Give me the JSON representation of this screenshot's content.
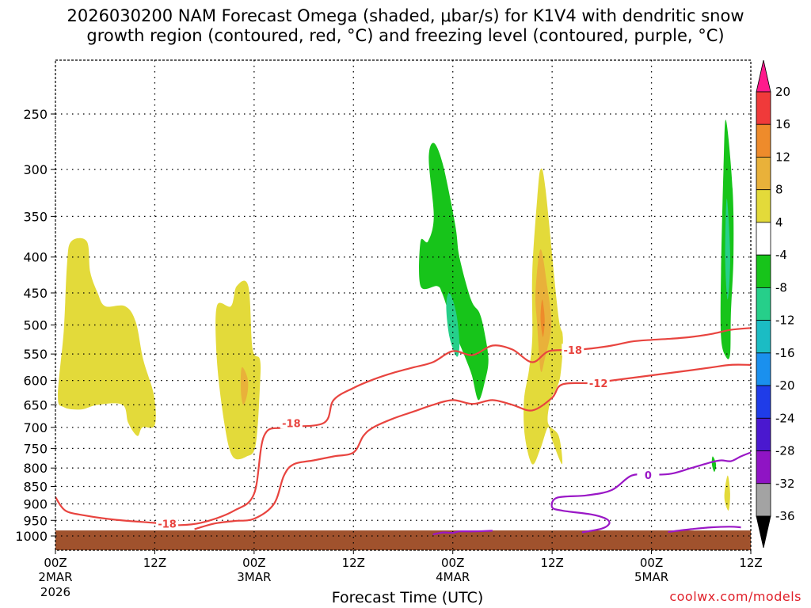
{
  "chart_data": {
    "type": "time-height cross section",
    "title_line1": "2026030200 NAM Forecast Omega (shaded, μbar/s) for K1V4 with dendritic snow",
    "title_line2": "growth region (contoured, red, °C) and freezing level (contoured, purple, °C)",
    "xlabel": "Forecast Time (UTC)",
    "x_range_hours": [
      0,
      84
    ],
    "x_ticks": [
      {
        "h": 0,
        "label": "00Z",
        "date": "2MAR",
        "year": "2026"
      },
      {
        "h": 12,
        "label": "12Z",
        "date": "",
        "year": ""
      },
      {
        "h": 24,
        "label": "00Z",
        "date": "3MAR",
        "year": ""
      },
      {
        "h": 36,
        "label": "12Z",
        "date": "",
        "year": ""
      },
      {
        "h": 48,
        "label": "00Z",
        "date": "4MAR",
        "year": ""
      },
      {
        "h": 60,
        "label": "12Z",
        "date": "",
        "year": ""
      },
      {
        "h": 72,
        "label": "00Z",
        "date": "5MAR",
        "year": ""
      },
      {
        "h": 84,
        "label": "12Z",
        "date": "",
        "year": ""
      }
    ],
    "y_ticks_hPa": [
      250,
      300,
      350,
      400,
      450,
      500,
      550,
      600,
      650,
      700,
      750,
      800,
      850,
      900,
      950,
      1000
    ],
    "y_range_hPa": [
      1030,
      200
    ],
    "ground_top_hPa": 982,
    "ground_color": "#a0522d",
    "colorbar": {
      "labels": [
        "20",
        "16",
        "12",
        "8",
        "4",
        "-4",
        "-8",
        "-12",
        "-16",
        "-20",
        "-24",
        "-28",
        "-32",
        "-36"
      ],
      "colors": [
        "#ff1a8c",
        "#f03a3a",
        "#ee8b2b",
        "#e9b13a",
        "#e3da3a",
        "#ffffff",
        "#17c41a",
        "#26cf8a",
        "#1bbcc4",
        "#1a90ee",
        "#1f3ce8",
        "#4a18cf",
        "#8f14c4",
        "#a3a3a3",
        "#000000"
      ]
    },
    "omega_regions": [
      {
        "name": "rise-2mar-early",
        "value_class": "4 to 8",
        "color": "#e3da3a",
        "points": [
          [
            0.3,
            630
          ],
          [
            1.0,
            510
          ],
          [
            1.4,
            410
          ],
          [
            1.9,
            380
          ],
          [
            3.8,
            380
          ],
          [
            4.2,
            420
          ],
          [
            5.1,
            450
          ],
          [
            6.0,
            470
          ],
          [
            8.4,
            470
          ],
          [
            9.7,
            495
          ],
          [
            10.6,
            560
          ],
          [
            11.9,
            630
          ],
          [
            12.0,
            695
          ],
          [
            10.5,
            700
          ],
          [
            9.9,
            720
          ],
          [
            8.8,
            690
          ],
          [
            8.1,
            650
          ],
          [
            5.1,
            650
          ],
          [
            3.1,
            660
          ],
          [
            1.0,
            655
          ]
        ]
      },
      {
        "name": "rise-2mar-late",
        "value_class": "4 to 8",
        "color": "#e3da3a",
        "points": [
          [
            19.5,
            470
          ],
          [
            21.2,
            470
          ],
          [
            21.9,
            440
          ],
          [
            23.3,
            440
          ],
          [
            23.8,
            540
          ],
          [
            24.7,
            560
          ],
          [
            24.7,
            610
          ],
          [
            24.2,
            740
          ],
          [
            23.1,
            770
          ],
          [
            21.4,
            770
          ],
          [
            20.4,
            690
          ],
          [
            19.5,
            560
          ]
        ]
      },
      {
        "name": "rise-2mar-late-core",
        "value_class": "8 to 12",
        "color": "#e9b13a",
        "points": [
          [
            22.5,
            575
          ],
          [
            23.2,
            595
          ],
          [
            23.2,
            625
          ],
          [
            22.7,
            650
          ],
          [
            22.4,
            620
          ]
        ]
      },
      {
        "name": "sink-4mar-upper",
        "value_class": "-4 to -8",
        "color": "#17c41a",
        "points": [
          [
            45.7,
            275
          ],
          [
            46.8,
            295
          ],
          [
            48.3,
            360
          ],
          [
            48.8,
            400
          ],
          [
            50.2,
            460
          ],
          [
            51.2,
            480
          ],
          [
            51.8,
            510
          ],
          [
            52.3,
            560
          ],
          [
            51.9,
            600
          ],
          [
            51.1,
            640
          ],
          [
            50.3,
            590
          ],
          [
            49.6,
            560
          ],
          [
            48.5,
            520
          ],
          [
            47.5,
            480
          ],
          [
            46.7,
            450
          ],
          [
            46.1,
            440
          ],
          [
            44.1,
            440
          ],
          [
            44.1,
            380
          ],
          [
            45.0,
            380
          ],
          [
            45.7,
            350
          ],
          [
            45.1,
            290
          ]
        ]
      },
      {
        "name": "sink-4mar-core",
        "value_class": "-8 to -12",
        "color": "#26cf8a",
        "points": [
          [
            47.6,
            450
          ],
          [
            48.4,
            480
          ],
          [
            48.8,
            530
          ],
          [
            48.5,
            555
          ],
          [
            47.6,
            520
          ],
          [
            47.2,
            470
          ]
        ]
      },
      {
        "name": "rise-4mar-pm",
        "value_class": "4 to 8",
        "color": "#e3da3a",
        "points": [
          [
            58.6,
            300
          ],
          [
            59.2,
            320
          ],
          [
            60.7,
            480
          ],
          [
            61.3,
            520
          ],
          [
            61.0,
            590
          ],
          [
            60.4,
            620
          ],
          [
            59.8,
            640
          ],
          [
            59.5,
            690
          ],
          [
            60.8,
            720
          ],
          [
            61.2,
            790
          ],
          [
            60.0,
            730
          ],
          [
            59.5,
            700
          ],
          [
            58.6,
            750
          ],
          [
            57.6,
            790
          ],
          [
            56.7,
            720
          ],
          [
            56.6,
            640
          ],
          [
            57.2,
            580
          ],
          [
            57.6,
            520
          ],
          [
            57.6,
            420
          ],
          [
            58.2,
            330
          ]
        ]
      },
      {
        "name": "rise-4mar-pm-core",
        "value_class": "8 to 12",
        "color": "#e9b13a",
        "points": [
          [
            58.6,
            390
          ],
          [
            59.4,
            440
          ],
          [
            59.9,
            500
          ],
          [
            59.1,
            560
          ],
          [
            58.6,
            580
          ],
          [
            58.2,
            500
          ],
          [
            58.0,
            450
          ]
        ]
      },
      {
        "name": "rise-4mar-pm-max",
        "value_class": "12 to 16",
        "color": "#ee8b2b",
        "points": [
          [
            58.8,
            460
          ],
          [
            59.1,
            490
          ],
          [
            58.9,
            520
          ],
          [
            58.6,
            490
          ]
        ]
      },
      {
        "name": "sink-5mar-pm",
        "value_class": "-4 to -8",
        "color": "#17c41a",
        "points": [
          [
            81.0,
            255
          ],
          [
            81.8,
            320
          ],
          [
            81.9,
            400
          ],
          [
            81.6,
            480
          ],
          [
            81.5,
            550
          ],
          [
            81.0,
            555
          ],
          [
            80.4,
            520
          ],
          [
            80.4,
            420
          ],
          [
            80.7,
            300
          ]
        ]
      },
      {
        "name": "sink-5mar-pm-core",
        "value_class": "-8 to -12",
        "color": "#26cf8a",
        "points": [
          [
            81.1,
            330
          ],
          [
            81.5,
            400
          ],
          [
            81.2,
            460
          ],
          [
            80.9,
            400
          ]
        ]
      },
      {
        "name": "sink-5mar-pm-low",
        "value_class": "-4 to -8",
        "color": "#17c41a",
        "points": [
          [
            79.4,
            770
          ],
          [
            79.8,
            790
          ],
          [
            79.6,
            810
          ],
          [
            79.3,
            790
          ]
        ]
      },
      {
        "name": "rise-5mar-pm-low",
        "value_class": "4 to 8",
        "color": "#e3da3a",
        "points": [
          [
            81.2,
            820
          ],
          [
            81.5,
            870
          ],
          [
            81.3,
            920
          ],
          [
            80.8,
            880
          ]
        ]
      }
    ],
    "contours": [
      {
        "name": "dgz-minus18",
        "label": "-18",
        "color": "#e8443f",
        "points": [
          [
            0,
            880
          ],
          [
            1.2,
            920
          ],
          [
            3.6,
            935
          ],
          [
            7.2,
            948
          ],
          [
            12,
            958
          ],
          [
            15,
            965
          ],
          [
            18,
            955
          ],
          [
            21.6,
            920
          ],
          [
            24,
            870
          ],
          [
            25.2,
            720
          ],
          [
            27.6,
            700
          ],
          [
            32.4,
            690
          ],
          [
            33.6,
            640
          ],
          [
            36,
            615
          ],
          [
            38.4,
            598
          ],
          [
            40.8,
            585
          ],
          [
            43.2,
            575
          ],
          [
            45.6,
            565
          ],
          [
            48.0,
            545
          ],
          [
            50.4,
            552
          ],
          [
            52.8,
            535
          ],
          [
            55.2,
            542
          ],
          [
            57.6,
            565
          ],
          [
            59.6,
            545
          ],
          [
            62.4,
            543
          ],
          [
            64.8,
            540
          ],
          [
            67.2,
            535
          ],
          [
            69.6,
            528
          ],
          [
            72.0,
            525
          ],
          [
            74.4,
            523
          ],
          [
            76.8,
            520
          ],
          [
            79.2,
            515
          ],
          [
            81.6,
            508
          ],
          [
            84,
            505
          ]
        ],
        "labels_at": [
          [
            13.5,
            960
          ],
          [
            28.5,
            690
          ],
          [
            62.5,
            543
          ]
        ]
      },
      {
        "name": "dgz-minus12",
        "label": "-12",
        "color": "#e8443f",
        "points": [
          [
            16.8,
            978
          ],
          [
            19.2,
            960
          ],
          [
            21.6,
            952
          ],
          [
            24.0,
            945
          ],
          [
            26.4,
            900
          ],
          [
            27.6,
            820
          ],
          [
            28.8,
            790
          ],
          [
            31.2,
            780
          ],
          [
            33.6,
            770
          ],
          [
            36.0,
            760
          ],
          [
            37.2,
            720
          ],
          [
            38.4,
            700
          ],
          [
            40.8,
            680
          ],
          [
            43.2,
            665
          ],
          [
            45.6,
            650
          ],
          [
            48.0,
            640
          ],
          [
            50.4,
            648
          ],
          [
            52.8,
            640
          ],
          [
            55.2,
            650
          ],
          [
            57.6,
            662
          ],
          [
            60.0,
            635
          ],
          [
            61.2,
            608
          ],
          [
            64.8,
            605
          ],
          [
            67.2,
            600
          ],
          [
            69.6,
            595
          ],
          [
            72.0,
            590
          ],
          [
            74.4,
            585
          ],
          [
            76.8,
            580
          ],
          [
            79.2,
            575
          ],
          [
            81.6,
            570
          ],
          [
            84,
            570
          ]
        ],
        "labels_at": [
          [
            65.6,
            605
          ]
        ]
      },
      {
        "name": "freezing-level-0",
        "label": "0",
        "color": "#9a17c6",
        "points": [
          [
            45.6,
            995
          ],
          [
            46.8,
            989
          ],
          [
            48.0,
            990
          ],
          [
            48.8,
            985
          ],
          [
            50.4,
            985
          ],
          [
            52.8,
            983
          ]
        ],
        "labels_at": []
      },
      {
        "name": "freezing-level-0b",
        "label": "0",
        "color": "#9a17c6",
        "points": [
          [
            63.6,
            988
          ],
          [
            66.0,
            976
          ],
          [
            66.9,
            960
          ],
          [
            66.5,
            945
          ],
          [
            64.8,
            932
          ],
          [
            61.2,
            920
          ],
          [
            60.0,
            910
          ],
          [
            60.6,
            882
          ],
          [
            64.2,
            875
          ],
          [
            67.2,
            860
          ],
          [
            69.6,
            820
          ],
          [
            72.0,
            818
          ],
          [
            74.4,
            815
          ],
          [
            76.8,
            800
          ],
          [
            79.2,
            785
          ],
          [
            80.4,
            780
          ],
          [
            81.6,
            782
          ],
          [
            82.8,
            770
          ],
          [
            84,
            760
          ]
        ],
        "labels_at": [
          [
            71.6,
            818
          ]
        ]
      },
      {
        "name": "freezing-level-0c",
        "label": "0",
        "color": "#9a17c6",
        "points": [
          [
            74.0,
            987
          ],
          [
            76.8,
            978
          ],
          [
            79.2,
            972
          ],
          [
            81.4,
            970
          ],
          [
            82.8,
            972
          ]
        ],
        "labels_at": []
      }
    ]
  },
  "credit": "coolwx.com/models"
}
